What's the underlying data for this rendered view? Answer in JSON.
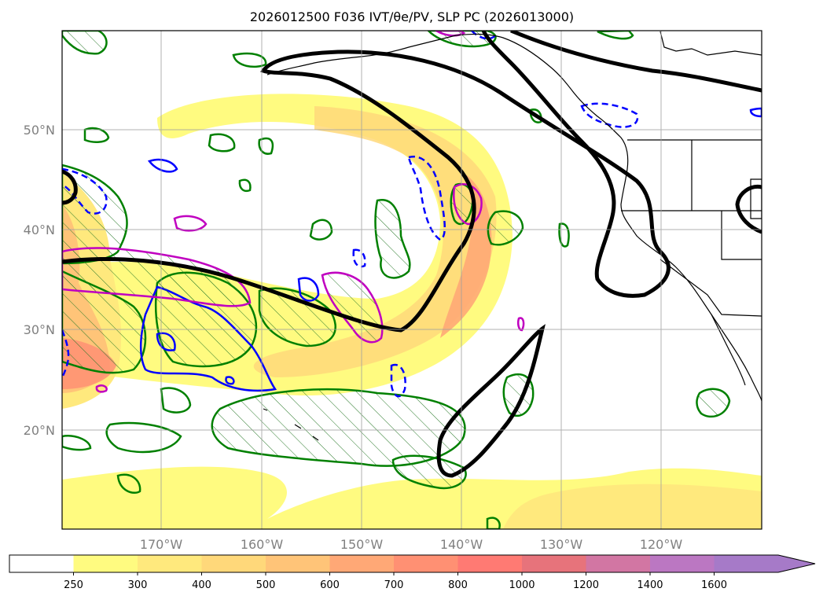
{
  "title": "2026012500 F036 IVT/θe/PV, SLP PC (2026013000)",
  "map": {
    "lon_labels": [
      "170°W",
      "160°W",
      "150°W",
      "140°W",
      "130°W",
      "120°W"
    ],
    "lat_labels": [
      "50°N",
      "40°N",
      "30°N",
      "20°N"
    ],
    "layers": [
      "IVT shading",
      "theta-e contours (green, hatched)",
      "PV contours (blue, magenta)",
      "SLP PC contours (black)"
    ]
  },
  "colorbar": {
    "labels": [
      "250",
      "300",
      "400",
      "500",
      "600",
      "700",
      "800",
      "1000",
      "1200",
      "1400",
      "1600"
    ],
    "colors": [
      "#ffffff",
      "#fffb80",
      "#ffe97d",
      "#ffd87a",
      "#ffc478",
      "#ffa876",
      "#ff9073",
      "#ff7a73",
      "#e7737b",
      "#d276a3",
      "#bb77c2",
      "#a67ac8"
    ]
  }
}
